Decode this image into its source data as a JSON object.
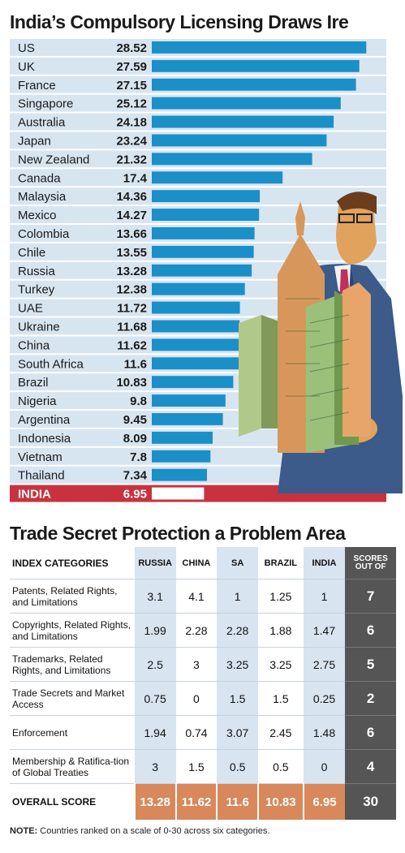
{
  "chart_data": [
    {
      "type": "bar",
      "title": "India’s Compulsory Licensing Draws Ire",
      "categories": [
        "US",
        "UK",
        "France",
        "Singapore",
        "Australia",
        "Japan",
        "New Zealand",
        "Canada",
        "Malaysia",
        "Mexico",
        "Colombia",
        "Chile",
        "Russia",
        "Turkey",
        "UAE",
        "Ukraine",
        "China",
        "South Africa",
        "Brazil",
        "Nigeria",
        "Argentina",
        "Indonesia",
        "Vietnam",
        "Thailand",
        "INDIA"
      ],
      "values": [
        28.52,
        27.59,
        27.15,
        25.12,
        24.18,
        23.24,
        21.32,
        17.4,
        14.36,
        14.27,
        13.66,
        13.55,
        13.28,
        12.38,
        11.72,
        11.68,
        11.62,
        11.6,
        10.83,
        9.8,
        9.45,
        8.09,
        7.8,
        7.34,
        6.95
      ],
      "value_labels": [
        "28.52",
        "27.59",
        "27.15",
        "25.12",
        "24.18",
        "23.24",
        "21.32",
        "17.4",
        "14.36",
        "14.27",
        "13.66",
        "13.55",
        "13.28",
        "12.38",
        "11.72",
        "11.68",
        "11.62",
        "11.6",
        "10.83",
        "9.8",
        "9.45",
        "8.09",
        "7.8",
        "7.34",
        "6.95"
      ],
      "highlight": "INDIA",
      "orientation": "horizontal",
      "xlim": [
        0,
        30
      ],
      "colors": {
        "bar": "#1b8fc7",
        "row_band": "#d7e5f1",
        "highlight_row": "#c8323f",
        "highlight_bar": "#ffffff"
      }
    },
    {
      "type": "table",
      "title": "Trade Secret Protection a Problem Area",
      "header": {
        "category": "INDEX CATEGORIES",
        "countries": [
          "RUSSIA",
          "CHINA",
          "SA",
          "BRAZIL",
          "INDIA"
        ],
        "scores_line1": "SCORES",
        "scores_line2": "OUT OF"
      },
      "rows": [
        {
          "category": "Patents, Related Rights, and Limitations",
          "values": [
            "3.1",
            "4.1",
            "1",
            "1.25",
            "1"
          ],
          "out_of": "7"
        },
        {
          "category": "Copyrights, Related Rights, and Limitations",
          "values": [
            "1.99",
            "2.28",
            "2.28",
            "1.88",
            "1.47"
          ],
          "out_of": "6"
        },
        {
          "category": "Trademarks, Related Rights, and Limitations",
          "values": [
            "2.5",
            "3",
            "3.25",
            "3.25",
            "2.75"
          ],
          "out_of": "5"
        },
        {
          "category": "Trade Secrets and Market Access",
          "values": [
            "0.75",
            "0",
            "1.5",
            "1.5",
            "0.25"
          ],
          "out_of": "2"
        },
        {
          "category": "Enforcement",
          "values": [
            "1.94",
            "0.74",
            "3.07",
            "2.45",
            "1.48"
          ],
          "out_of": "6"
        },
        {
          "category": "Membership & Ratifica-tion of Global Treaties",
          "values": [
            "3",
            "1.5",
            "0.5",
            "0.5",
            "0"
          ],
          "out_of": "4"
        }
      ],
      "total": {
        "category": "OVERALL SCORE",
        "values": [
          "13.28",
          "11.62",
          "11.6",
          "10.83",
          "6.95"
        ],
        "out_of": "30"
      },
      "colors": {
        "band": "#d8e4f0",
        "scores_col": "#555555",
        "overall": "#d8885a"
      }
    }
  ],
  "note": {
    "label": "NOTE:",
    "text": " Countries ranked on a scale of 0-30 across six categories."
  }
}
